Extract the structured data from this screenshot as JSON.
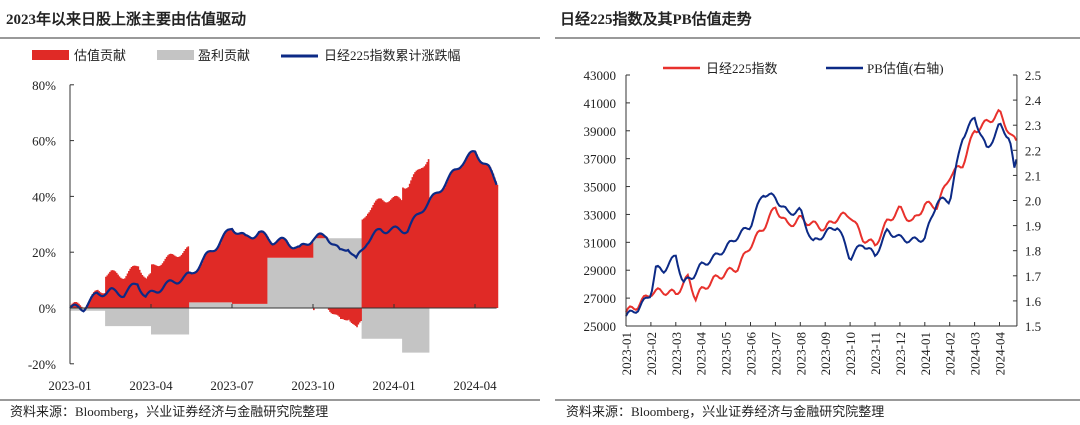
{
  "colors": {
    "red": "#e02a26",
    "gray": "#c4c4c4",
    "blue": "#0c2a86",
    "line_red": "#e8312c"
  },
  "left": {
    "title": "2023年以来日股上涨主要由估值驱动",
    "source": "资料来源：Bloomberg，兴业证券经济与金融研究院整理"
  },
  "right": {
    "title": "日经225指数及其PB估值走势",
    "source": "资料来源：Bloomberg，兴业证券经济与金融研究院整理"
  },
  "chart_data": [
    {
      "type": "area",
      "title": "2023年以来日股上涨主要由估值驱动",
      "x_unit": "months since 2023-01",
      "x_ticks": [
        "2023-01",
        "2023-04",
        "2023-07",
        "2023-10",
        "2024-01",
        "2024-04"
      ],
      "x_tick_months": [
        0,
        3,
        6,
        9,
        12,
        15
      ],
      "ylim": [
        -20,
        80
      ],
      "y_ticks": [
        "-20%",
        "0%",
        "20%",
        "40%",
        "60%",
        "80%"
      ],
      "y_tick_values": [
        -20,
        0,
        20,
        40,
        60,
        80
      ],
      "legend": [
        "估值贡献",
        "盈利贡献",
        "日经225指数累计涨跌幅"
      ],
      "legend_position": "top",
      "x": [
        0,
        0.5,
        1,
        1.5,
        2,
        2.5,
        2.8,
        3,
        3.5,
        4,
        4.5,
        5,
        5.5,
        6,
        6.5,
        7,
        7.5,
        8,
        8.5,
        9,
        9.5,
        10,
        10.3,
        10.6,
        11,
        11.5,
        12,
        12.5,
        13,
        13.5,
        14,
        14.5,
        15,
        15.5,
        15.8
      ],
      "series": [
        {
          "name": "日经225指数累计涨跌幅",
          "values": [
            0,
            0,
            5,
            6,
            5,
            9,
            4,
            5,
            8,
            10,
            12,
            18,
            23,
            29,
            25,
            27,
            24,
            24,
            21,
            25,
            26,
            20,
            22,
            17,
            24,
            28,
            28,
            28,
            35,
            40,
            46,
            52,
            56,
            50,
            45
          ]
        },
        {
          "name": "盈利贡献",
          "steps": [
            [
              0,
              1.3,
              -1
            ],
            [
              1.3,
              3.0,
              -6.5
            ],
            [
              3.0,
              4.4,
              -9.5
            ],
            [
              4.4,
              6.0,
              2
            ],
            [
              6.0,
              7.3,
              1.5
            ],
            [
              7.3,
              9.0,
              18
            ],
            [
              9.0,
              10.8,
              25
            ],
            [
              10.8,
              12.3,
              -11
            ],
            [
              12.3,
              13.3,
              -16
            ],
            [
              13.3,
              15.8,
              0
            ]
          ]
        },
        {
          "name": "估值贡献",
          "derived": "累计涨跌幅 - 盈利贡献"
        }
      ]
    },
    {
      "type": "line",
      "title": "日经225指数及其PB估值走势",
      "x_unit": "months since 2023-01",
      "x_ticks": [
        "2023-01",
        "2023-02",
        "2023-03",
        "2023-04",
        "2023-05",
        "2023-06",
        "2023-07",
        "2023-08",
        "2023-09",
        "2023-10",
        "2023-11",
        "2023-12",
        "2024-01",
        "2024-02",
        "2024-03",
        "2024-04"
      ],
      "ylim": [
        25000,
        43000
      ],
      "y_ticks": [
        "25000",
        "27000",
        "29000",
        "31000",
        "33000",
        "35000",
        "37000",
        "39000",
        "41000",
        "43000"
      ],
      "y2lim": [
        1.5,
        2.5
      ],
      "y2_ticks": [
        "1.5",
        "1.6",
        "1.7",
        "1.8",
        "1.9",
        "2.0",
        "2.1",
        "2.2",
        "2.3",
        "2.4",
        "2.5"
      ],
      "legend": [
        "日经225指数",
        "PB估值(右轴)"
      ],
      "legend_position": "top",
      "series": [
        {
          "name": "日经225指数",
          "axis": "left",
          "x": [
            0,
            0.5,
            1,
            1.5,
            2,
            2.5,
            2.8,
            3,
            3.5,
            4,
            4.5,
            5,
            5.5,
            6,
            6.5,
            7,
            7.5,
            8,
            8.5,
            9,
            9.5,
            10,
            10.5,
            11,
            11.5,
            12,
            12.5,
            13,
            13.5,
            14,
            14.5,
            15,
            15.5,
            15.7
          ],
          "values": [
            26000,
            26500,
            27400,
            27500,
            27300,
            28500,
            27000,
            27500,
            28300,
            28800,
            29200,
            30800,
            32000,
            33500,
            32200,
            32700,
            32300,
            32000,
            32800,
            33000,
            31300,
            30800,
            32500,
            33400,
            32400,
            33700,
            33600,
            35800,
            36500,
            39000,
            39600,
            40300,
            38500,
            38200
          ]
        },
        {
          "name": "PB估值(右轴)",
          "axis": "right",
          "x": [
            0,
            0.5,
            1,
            1.2,
            1.5,
            2,
            2.3,
            2.7,
            3,
            3.5,
            4,
            4.5,
            5,
            5.5,
            6,
            6.5,
            7,
            7.5,
            8,
            8.5,
            9,
            9.5,
            10,
            10.5,
            11,
            11.5,
            12,
            12.5,
            13,
            13.5,
            14,
            14.5,
            15,
            15.4,
            15.6,
            15.7
          ],
          "values": [
            1.54,
            1.57,
            1.63,
            1.73,
            1.72,
            1.78,
            1.67,
            1.7,
            1.74,
            1.77,
            1.81,
            1.86,
            1.9,
            2.03,
            2.01,
            1.95,
            1.96,
            1.83,
            1.87,
            1.9,
            1.77,
            1.83,
            1.78,
            1.88,
            1.85,
            1.84,
            1.85,
            2.0,
            2.0,
            2.25,
            2.33,
            2.2,
            2.3,
            2.25,
            2.12,
            2.17
          ]
        }
      ]
    }
  ]
}
